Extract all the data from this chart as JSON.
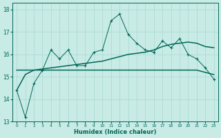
{
  "xlabel": "Humidex (Indice chaleur)",
  "bg_color": "#c8ebe6",
  "grid_color": "#a8d8d0",
  "line_color": "#006655",
  "xlim": [
    -0.5,
    23.5
  ],
  "ylim": [
    13.0,
    18.3
  ],
  "yticks": [
    13,
    14,
    15,
    16,
    17,
    18
  ],
  "xticks": [
    0,
    1,
    2,
    3,
    4,
    5,
    6,
    7,
    8,
    9,
    10,
    11,
    12,
    13,
    14,
    15,
    16,
    17,
    18,
    19,
    20,
    21,
    22,
    23
  ],
  "x": [
    0,
    1,
    2,
    3,
    4,
    5,
    6,
    7,
    8,
    9,
    10,
    11,
    12,
    13,
    14,
    15,
    16,
    17,
    18,
    19,
    20,
    21,
    22,
    23
  ],
  "y_spiky": [
    14.4,
    13.2,
    14.7,
    15.3,
    16.2,
    15.8,
    16.2,
    15.5,
    15.5,
    16.1,
    16.2,
    17.5,
    17.8,
    16.9,
    16.5,
    16.2,
    16.1,
    16.6,
    16.3,
    16.7,
    16.0,
    15.8,
    15.4,
    14.9
  ],
  "y_flat": [
    15.3,
    15.3,
    15.3,
    15.3,
    15.3,
    15.3,
    15.3,
    15.3,
    15.3,
    15.3,
    15.3,
    15.3,
    15.3,
    15.3,
    15.3,
    15.3,
    15.3,
    15.3,
    15.3,
    15.3,
    15.3,
    15.3,
    15.2,
    15.1
  ],
  "y_rising": [
    14.4,
    15.1,
    15.3,
    15.35,
    15.4,
    15.45,
    15.5,
    15.55,
    15.6,
    15.65,
    15.7,
    15.8,
    15.9,
    16.0,
    16.05,
    16.1,
    16.2,
    16.35,
    16.45,
    16.5,
    16.55,
    16.5,
    16.35,
    16.3
  ]
}
